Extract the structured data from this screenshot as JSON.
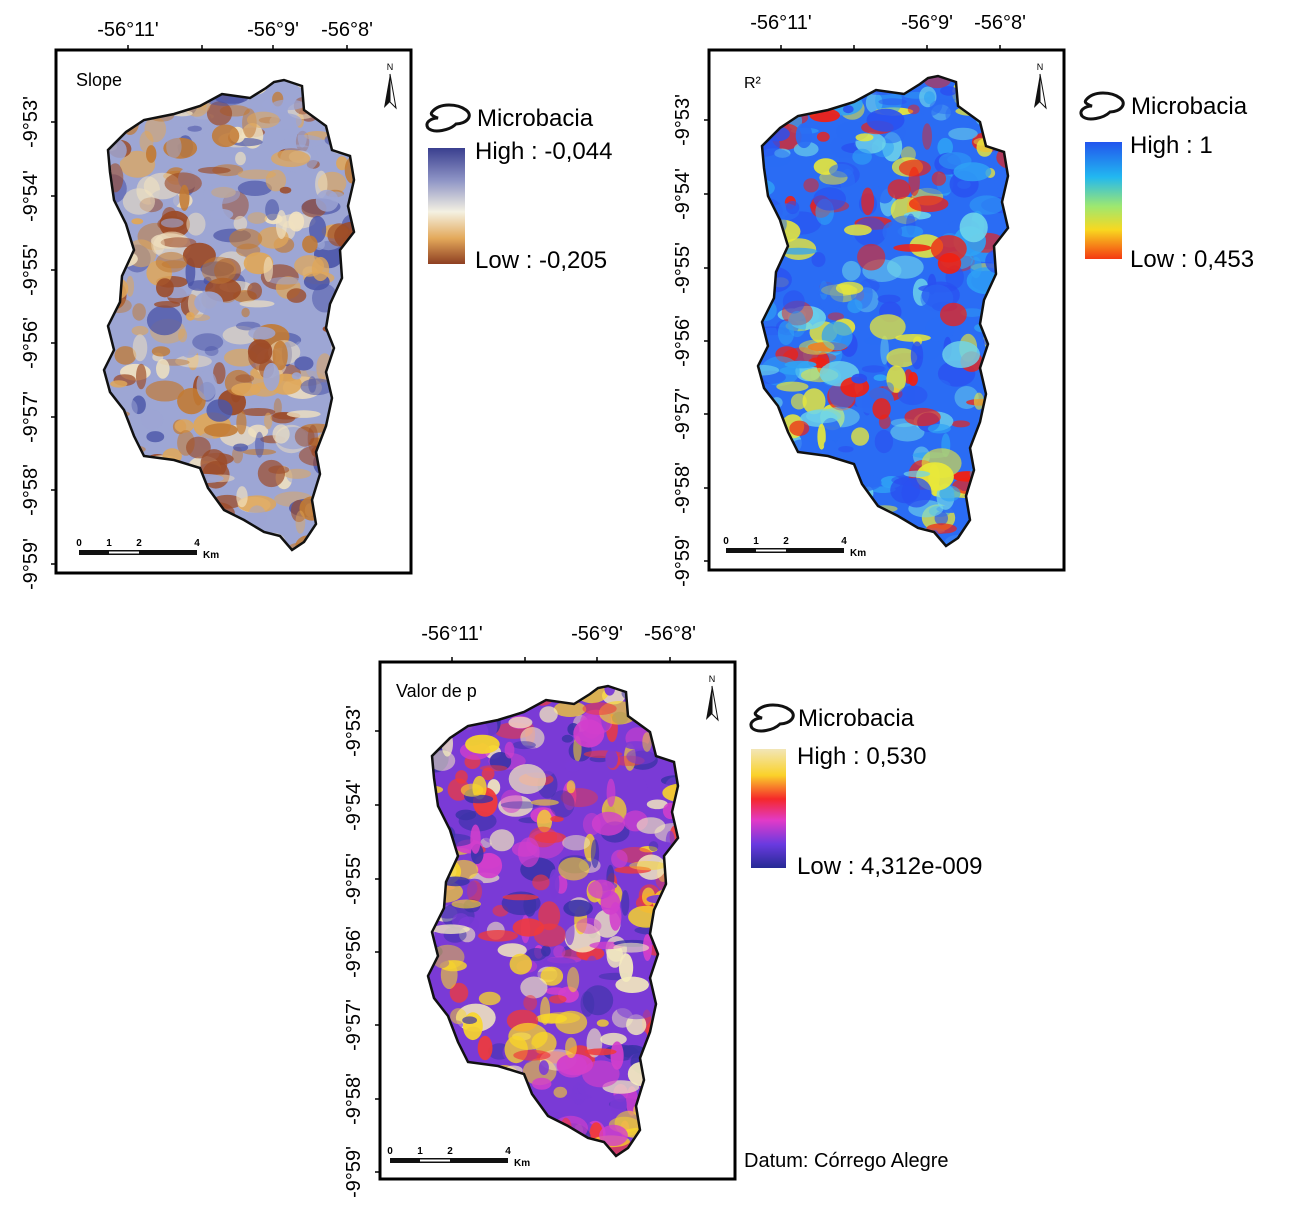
{
  "panels": [
    {
      "id": "slope",
      "title": "Slope",
      "lon_labels": [
        "-56°11'",
        "-56°9'",
        "-56°8'"
      ],
      "lat_labels": [
        "-9°53'",
        "-9°54'",
        "-9°55'",
        "-9°56'",
        "-9°57'",
        "-9°58'",
        "-9°59'"
      ],
      "legend_layer": "Microbacia",
      "legend_high": "High : -0,044",
      "legend_low": "Low : -0,205",
      "ramp": [
        "#3a3f8f",
        "#8f95c6",
        "#f4f1e2",
        "#e3a85a",
        "#8e3f22"
      ],
      "map_colors": [
        "#4b55a8",
        "#9da6d4",
        "#f1e2c0",
        "#e0a759",
        "#c27a33",
        "#9c4a26"
      ],
      "scale_ticks": [
        "0",
        "1",
        "2",
        "4"
      ],
      "scale_unit": "Km",
      "north": "N"
    },
    {
      "id": "r2",
      "title": "R²",
      "lon_labels": [
        "-56°11'",
        "-56°9'",
        "-56°8'"
      ],
      "lat_labels": [
        "-9°53'",
        "-9°54'",
        "-9°55'",
        "-9°56'",
        "-9°57'",
        "-9°58'",
        "-9°59'"
      ],
      "legend_layer": "Microbacia",
      "legend_high": "High : 1",
      "legend_low": "Low : 0,453",
      "ramp": [
        "#2255ee",
        "#22b8f0",
        "#9ee870",
        "#f8d820",
        "#f43a12"
      ],
      "map_colors": [
        "#2a50f0",
        "#2a6cf4",
        "#2fa2f5",
        "#6fd6ea",
        "#e8e83a",
        "#f22010"
      ],
      "scale_ticks": [
        "0",
        "1",
        "2",
        "4"
      ],
      "scale_unit": "Km",
      "north": "N"
    },
    {
      "id": "pvalue",
      "title": "Valor de p",
      "lon_labels": [
        "-56°11'",
        "-56°9'",
        "-56°8'"
      ],
      "lat_labels": [
        "-9°53'",
        "-9°54'",
        "-9°55'",
        "-9°56'",
        "-9°57'",
        "-9°58'",
        "-9°59'"
      ],
      "legend_layer": "Microbacia",
      "legend_high": "High : 0,530",
      "legend_low": "Low : 4,312e-009",
      "ramp": [
        "#f2e6b8",
        "#fad22a",
        "#f5282a",
        "#e23ac8",
        "#6a3ae0",
        "#262a94"
      ],
      "map_colors": [
        "#3b33a8",
        "#7a3ad6",
        "#d23fcc",
        "#f03a3a",
        "#f8d62a",
        "#f4ebbe"
      ],
      "scale_ticks": [
        "0",
        "1",
        "2",
        "4"
      ],
      "scale_unit": "Km",
      "north": "N"
    }
  ],
  "datum": "Datum: Córrego Alegre"
}
